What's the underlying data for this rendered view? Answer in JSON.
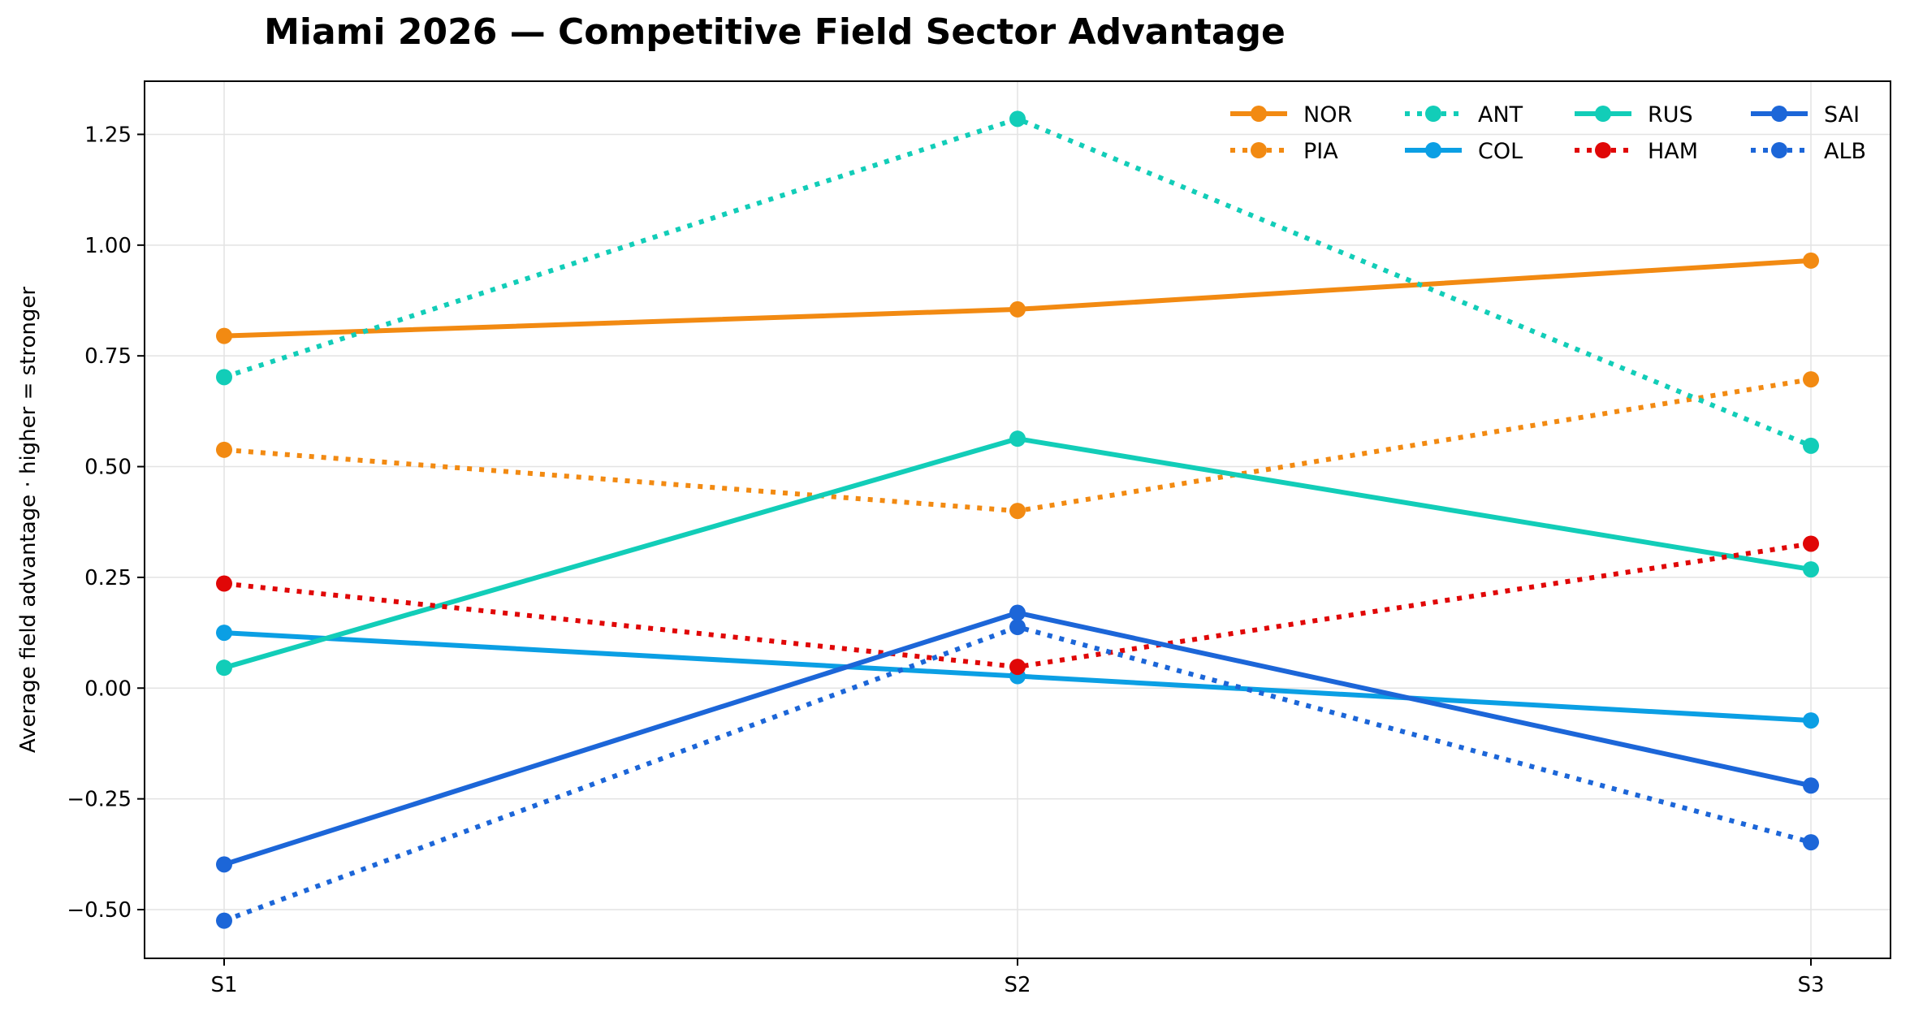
{
  "chart_data": {
    "type": "line",
    "title": "Miami 2026 — Competitive Field Sector Advantage",
    "xlabel": "",
    "ylabel": "Average field advantage · higher = stronger",
    "categories": [
      "S1",
      "S2",
      "S3"
    ],
    "ylim": [
      -0.61,
      1.37
    ],
    "yticks": [
      -0.5,
      -0.25,
      0.0,
      0.25,
      0.5,
      0.75,
      1.0,
      1.25
    ],
    "ytick_labels": [
      "−0.50",
      "−0.25",
      "0.00",
      "0.25",
      "0.50",
      "0.75",
      "1.00",
      "1.25"
    ],
    "grid": true,
    "legend_position": "top-right",
    "legend_columns": 4,
    "series": [
      {
        "name": "NOR",
        "values": [
          0.795,
          0.855,
          0.965
        ],
        "color": "#f28a12",
        "style": "solid"
      },
      {
        "name": "PIA",
        "values": [
          0.538,
          0.4,
          0.697
        ],
        "color": "#f28a12",
        "style": "dotted"
      },
      {
        "name": "ANT",
        "values": [
          0.702,
          1.285,
          0.547
        ],
        "color": "#12cdb8",
        "style": "dotted"
      },
      {
        "name": "COL",
        "values": [
          0.125,
          0.027,
          -0.073
        ],
        "color": "#0b9fe4",
        "style": "solid"
      },
      {
        "name": "RUS",
        "values": [
          0.046,
          0.563,
          0.268
        ],
        "color": "#12cdb8",
        "style": "solid"
      },
      {
        "name": "HAM",
        "values": [
          0.236,
          0.048,
          0.326
        ],
        "color": "#e00707",
        "style": "dotted"
      },
      {
        "name": "SAI",
        "values": [
          -0.398,
          0.17,
          -0.22
        ],
        "color": "#1c66d8",
        "style": "solid"
      },
      {
        "name": "ALB",
        "values": [
          -0.525,
          0.138,
          -0.348
        ],
        "color": "#1c66d8",
        "style": "dotted"
      }
    ]
  }
}
